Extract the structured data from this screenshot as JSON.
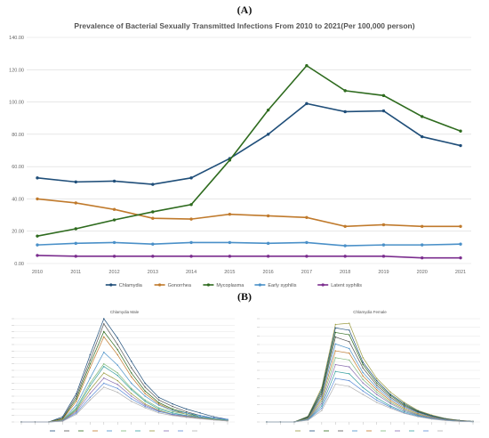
{
  "panel_a_label": "(A)",
  "panel_b_label": "(B)",
  "chart_data": [
    {
      "type": "line",
      "title": "Prevalence of Bacterial Sexually Transmitted Infections From 2010 to 2021(Per 100,000 person)",
      "x": [
        "2010",
        "2011",
        "2012",
        "2013",
        "2014",
        "2015",
        "2016",
        "2017",
        "2018",
        "2019",
        "2020",
        "2021"
      ],
      "yticks": [
        "0.00",
        "20.00",
        "40.00",
        "60.00",
        "80.00",
        "100.00",
        "120.00",
        "140.00"
      ],
      "ylim": [
        0,
        140
      ],
      "grid": true,
      "legend": "bottom",
      "series": [
        {
          "name": "Chlamydia",
          "color": "#1f4e79",
          "values": [
            53,
            50.5,
            51,
            49,
            53,
            65,
            80,
            99,
            94,
            94.5,
            78.5,
            73
          ]
        },
        {
          "name": "Gonorrhea",
          "color": "#c07a2c",
          "values": [
            40,
            37.5,
            33.5,
            28,
            27.5,
            30.5,
            29.5,
            28.5,
            23,
            24,
            23,
            23
          ]
        },
        {
          "name": "Mycoplasma",
          "color": "#2e6b1e",
          "values": [
            17,
            21.5,
            27,
            32,
            36.5,
            64,
            95,
            122.5,
            107,
            104,
            91,
            82
          ]
        },
        {
          "name": "Early syphilis",
          "color": "#4a90c8",
          "values": [
            11.5,
            12.5,
            13,
            12,
            13,
            13,
            12.5,
            13,
            11,
            11.5,
            11.5,
            12
          ]
        },
        {
          "name": "Latent syphilis",
          "color": "#7b2d8e",
          "values": [
            5,
            4.5,
            4.5,
            4.5,
            4.5,
            4.5,
            4.5,
            4.5,
            4.5,
            4.5,
            3.5,
            3.5
          ]
        }
      ]
    },
    {
      "type": "line",
      "title": "Chlamydia Male",
      "ylim": [
        0,
        800
      ],
      "ticks_count": 17,
      "series": [
        {
          "color": "#1f4e79",
          "values": [
            0,
            0,
            0,
            40,
            220,
            520,
            800,
            650,
            470,
            300,
            190,
            140,
            100,
            70,
            40,
            20
          ]
        },
        {
          "color": "#555555",
          "values": [
            0,
            0,
            0,
            30,
            200,
            480,
            760,
            600,
            420,
            270,
            170,
            120,
            80,
            50,
            30,
            15
          ]
        },
        {
          "color": "#2e6b1e",
          "values": [
            0,
            0,
            0,
            25,
            180,
            450,
            700,
            560,
            380,
            240,
            150,
            100,
            70,
            40,
            20,
            10
          ]
        },
        {
          "color": "#c07a2c",
          "values": [
            0,
            0,
            0,
            20,
            160,
            420,
            660,
            520,
            350,
            220,
            140,
            90,
            60,
            35,
            20,
            10
          ]
        },
        {
          "color": "#4a90c8",
          "values": [
            0,
            0,
            0,
            15,
            130,
            340,
            540,
            440,
            300,
            200,
            130,
            90,
            70,
            50,
            30,
            15
          ]
        },
        {
          "color": "#7db87a",
          "values": [
            0,
            0,
            0,
            12,
            110,
            300,
            450,
            380,
            260,
            170,
            110,
            80,
            60,
            40,
            25,
            12
          ]
        },
        {
          "color": "#3aa0a0",
          "values": [
            0,
            0,
            0,
            10,
            100,
            280,
            430,
            360,
            250,
            160,
            100,
            70,
            50,
            35,
            20,
            10
          ]
        },
        {
          "color": "#9a9a40",
          "values": [
            0,
            0,
            0,
            10,
            90,
            250,
            380,
            320,
            220,
            140,
            90,
            60,
            45,
            30,
            18,
            8
          ]
        },
        {
          "color": "#8a6fb0",
          "values": [
            0,
            0,
            0,
            8,
            80,
            220,
            340,
            290,
            200,
            130,
            85,
            55,
            40,
            28,
            16,
            8
          ]
        },
        {
          "color": "#5b8cd6",
          "values": [
            0,
            0,
            0,
            6,
            70,
            190,
            300,
            260,
            180,
            120,
            80,
            60,
            50,
            40,
            30,
            20
          ]
        },
        {
          "color": "#b0b0b0",
          "values": [
            0,
            0,
            0,
            5,
            60,
            170,
            270,
            230,
            160,
            110,
            70,
            50,
            35,
            25,
            15,
            7
          ]
        }
      ]
    },
    {
      "type": "line",
      "title": "Chlamydia Female",
      "ylim": [
        0,
        900
      ],
      "ticks_count": 13,
      "series": [
        {
          "color": "#9a9a40",
          "values": [
            0,
            0,
            0,
            50,
            300,
            850,
            860,
            560,
            380,
            260,
            170,
            100,
            60,
            30,
            15,
            5
          ]
        },
        {
          "color": "#1f4e79",
          "values": [
            0,
            0,
            0,
            45,
            280,
            820,
            800,
            520,
            360,
            240,
            160,
            95,
            55,
            28,
            14,
            5
          ]
        },
        {
          "color": "#2e6b1e",
          "values": [
            0,
            0,
            0,
            40,
            260,
            780,
            760,
            500,
            340,
            230,
            150,
            90,
            50,
            25,
            12,
            4
          ]
        },
        {
          "color": "#555555",
          "values": [
            0,
            0,
            0,
            35,
            240,
            740,
            700,
            470,
            320,
            215,
            140,
            85,
            48,
            24,
            12,
            4
          ]
        },
        {
          "color": "#4a90c8",
          "values": [
            0,
            0,
            0,
            30,
            220,
            680,
            640,
            430,
            300,
            200,
            130,
            80,
            45,
            22,
            10,
            4
          ]
        },
        {
          "color": "#c07a2c",
          "values": [
            0,
            0,
            0,
            28,
            200,
            620,
            600,
            400,
            280,
            185,
            120,
            72,
            40,
            20,
            10,
            3
          ]
        },
        {
          "color": "#7db87a",
          "values": [
            0,
            0,
            0,
            25,
            180,
            560,
            540,
            370,
            260,
            170,
            110,
            65,
            36,
            18,
            8,
            3
          ]
        },
        {
          "color": "#8a6fb0",
          "values": [
            0,
            0,
            0,
            22,
            160,
            500,
            480,
            340,
            240,
            160,
            100,
            60,
            34,
            17,
            8,
            3
          ]
        },
        {
          "color": "#3aa0a0",
          "values": [
            0,
            0,
            0,
            20,
            140,
            440,
            420,
            300,
            210,
            140,
            90,
            55,
            30,
            15,
            7,
            2
          ]
        },
        {
          "color": "#5b8cd6",
          "values": [
            0,
            0,
            0,
            18,
            120,
            380,
            360,
            270,
            190,
            130,
            80,
            50,
            28,
            14,
            6,
            2
          ]
        },
        {
          "color": "#b0b0b0",
          "values": [
            0,
            0,
            0,
            15,
            100,
            330,
            310,
            240,
            170,
            120,
            75,
            45,
            25,
            12,
            5,
            2
          ]
        }
      ]
    }
  ]
}
